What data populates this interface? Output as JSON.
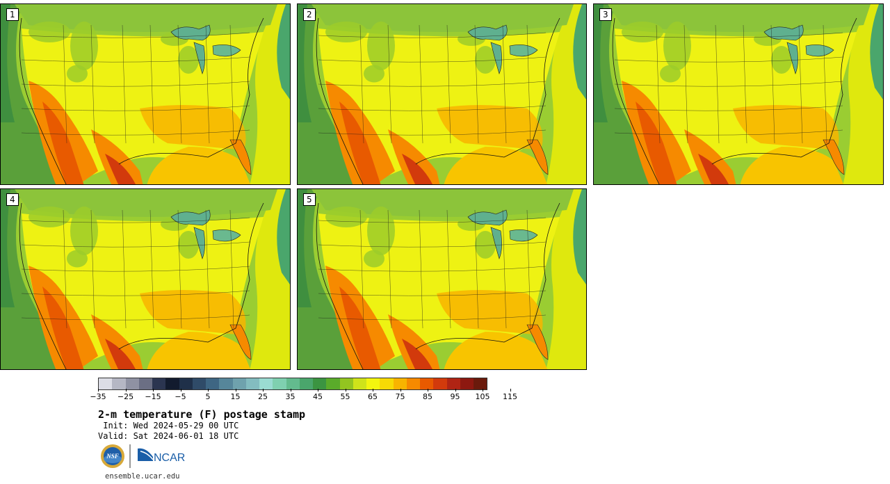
{
  "panels": [
    {
      "label": "1",
      "warm": 0.55
    },
    {
      "label": "2",
      "warm": 0.6
    },
    {
      "label": "3",
      "warm": 0.62
    },
    {
      "label": "4",
      "warm": 0.58
    },
    {
      "label": "5",
      "warm": 0.57
    }
  ],
  "colorbar": {
    "colors": [
      "#dcdde6",
      "#b5b7c4",
      "#8f92a3",
      "#6b6f84",
      "#2b3550",
      "#121b2e",
      "#1f3049",
      "#2f4b68",
      "#3e6683",
      "#56869a",
      "#6fa2ad",
      "#83bcc0",
      "#9adbd2",
      "#7fd0b0",
      "#63bb8e",
      "#4aa66c",
      "#3b9441",
      "#5aab2a",
      "#93c520",
      "#cfe31a",
      "#f3f50f",
      "#f7da05",
      "#f8b400",
      "#f68a00",
      "#e85a00",
      "#d23a0c",
      "#b02414",
      "#8d1810",
      "#6a1a0c"
    ],
    "tick_labels": [
      "−35",
      "−25",
      "−15",
      "−5",
      "5",
      "15",
      "25",
      "35",
      "45",
      "55",
      "65",
      "75",
      "85",
      "95",
      "105",
      "115"
    ]
  },
  "title": "2-m temperature (F) postage stamp",
  "init": " Init: Wed 2024-05-29 00 UTC",
  "valid": "Valid: Sat 2024-06-01 18 UTC",
  "logos": {
    "nsf": "NSF",
    "ncar": "NCAR"
  },
  "footer_url": "ensemble.ucar.edu"
}
